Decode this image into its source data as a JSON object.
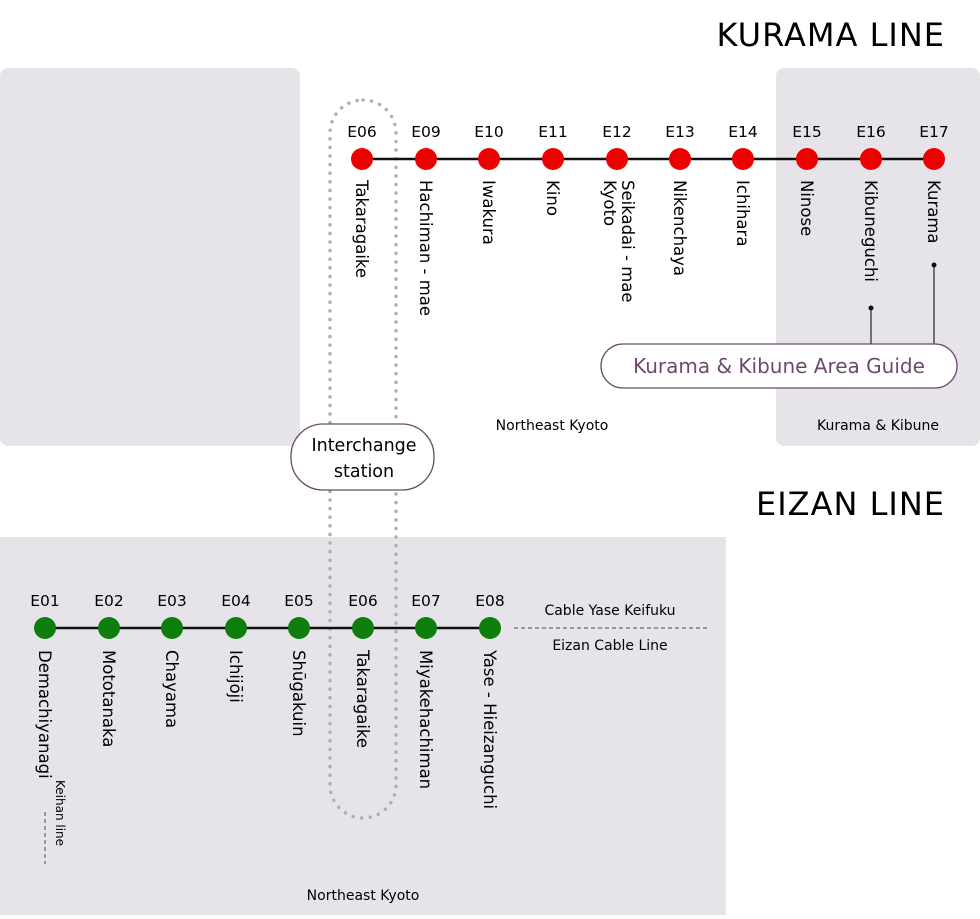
{
  "kurama": {
    "title": "KURAMA LINE",
    "region_main": "Northeast Kyoto",
    "region_right": "Kurama & Kibune",
    "guide_button": "Kurama & Kibune Area Guide",
    "line_color": "#ee0000",
    "stations": [
      {
        "code": "E06",
        "name": "Takaragaike"
      },
      {
        "code": "E09",
        "name": "Hachiman - mae"
      },
      {
        "code": "E10",
        "name": "Iwakura"
      },
      {
        "code": "E11",
        "name": "Kino"
      },
      {
        "code": "E12",
        "name": "Kyoto",
        "name2": "Seikadai - mae"
      },
      {
        "code": "E13",
        "name": "Nikenchaya"
      },
      {
        "code": "E14",
        "name": "Ichihara"
      },
      {
        "code": "E15",
        "name": "Ninose"
      },
      {
        "code": "E16",
        "name": "Kibuneguchi"
      },
      {
        "code": "E17",
        "name": "Kurama"
      }
    ]
  },
  "interchange": {
    "label1": "Interchange",
    "label2": "station"
  },
  "eizan": {
    "title": "EIZAN  LINE",
    "region": "Northeast Kyoto",
    "line_color": "#0d7d0d",
    "cable_top": "Cable Yase Keifuku",
    "cable_bottom": "Eizan Cable Line",
    "keihan": "Keihan line",
    "stations": [
      {
        "code": "E01",
        "name": "Demachiyanagi"
      },
      {
        "code": "E02",
        "name": "Mototanaka"
      },
      {
        "code": "E03",
        "name": "Chayama"
      },
      {
        "code": "E04",
        "name": "Ichijōji"
      },
      {
        "code": "E05",
        "name": "Shūgakuin"
      },
      {
        "code": "E06",
        "name": "Takaragaike"
      },
      {
        "code": "E07",
        "name": "Miyakehachiman"
      },
      {
        "code": "E08",
        "name": "Yase - Hieizanguchi"
      }
    ]
  },
  "colors": {
    "panel": "#e6e4e8",
    "accent": "#6b4a6b",
    "dots": "#b0b0b0"
  }
}
